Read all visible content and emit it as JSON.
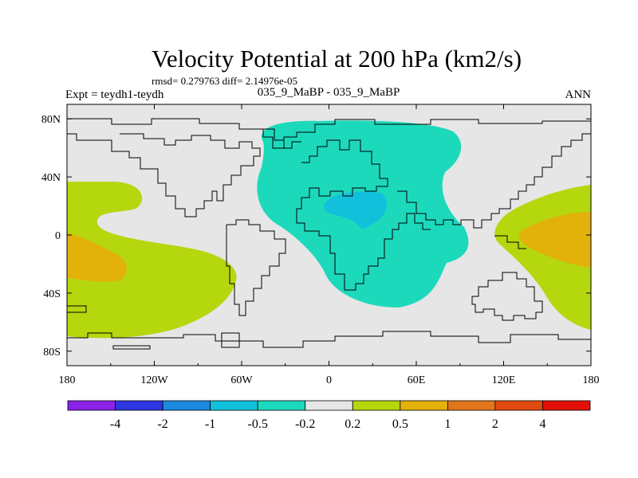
{
  "chart_data": {
    "type": "heatmap",
    "subtype": "filled-contour-map",
    "title": "Velocity Potential at 200 hPa (km2/s)",
    "stats": "rmsd= 0.279763 diff= 2.14976e-05",
    "left_label": "Expt = teydh1-teydh",
    "center_label": "035_9_MaBP - 035_9_MaBP",
    "right_label": "ANN",
    "x_axis": {
      "range": [
        -180,
        180
      ],
      "ticks": [
        -180,
        -120,
        -60,
        0,
        60,
        120,
        180
      ],
      "tick_labels": [
        "180",
        "120W",
        "60W",
        "0",
        "60E",
        "120E",
        "180"
      ]
    },
    "y_axis": {
      "range": [
        -90,
        90
      ],
      "ticks": [
        80,
        40,
        0,
        -40,
        -80
      ],
      "tick_labels": [
        "80N",
        "40N",
        "0",
        "40S",
        "80S"
      ]
    },
    "colorbar": {
      "tick_labels": [
        "-4",
        "-2",
        "-1",
        "-0.5",
        "-0.2",
        "0.2",
        "0.5",
        "1",
        "2",
        "4"
      ],
      "colors": [
        "#8a22e8",
        "#2e36df",
        "#1a8ae0",
        "#12c0dc",
        "#1cd9bc",
        "#e6e6e6",
        "#b5d70d",
        "#e2b10a",
        "#e2761b",
        "#e04a10",
        "#e2100a"
      ]
    },
    "regions": [
      {
        "level": "-0.5 to -0.2",
        "color": "#1cd9bc",
        "label": "Africa / Europe / Arabia"
      },
      {
        "level": "-1 to -0.5",
        "color": "#12c0dc",
        "label": "North Africa core"
      },
      {
        "level": "0.2 to 0.5",
        "color": "#b5d70d",
        "label": "Eastern Pacific"
      },
      {
        "level": "0.5 to 1",
        "color": "#e2b10a",
        "label": "Eastern Pacific core"
      },
      {
        "level": "0.2 to 0.5",
        "color": "#b5d70d",
        "label": "Western Pacific"
      },
      {
        "level": "0.5 to 1",
        "color": "#e2b10a",
        "label": "Western Pacific core"
      }
    ]
  }
}
